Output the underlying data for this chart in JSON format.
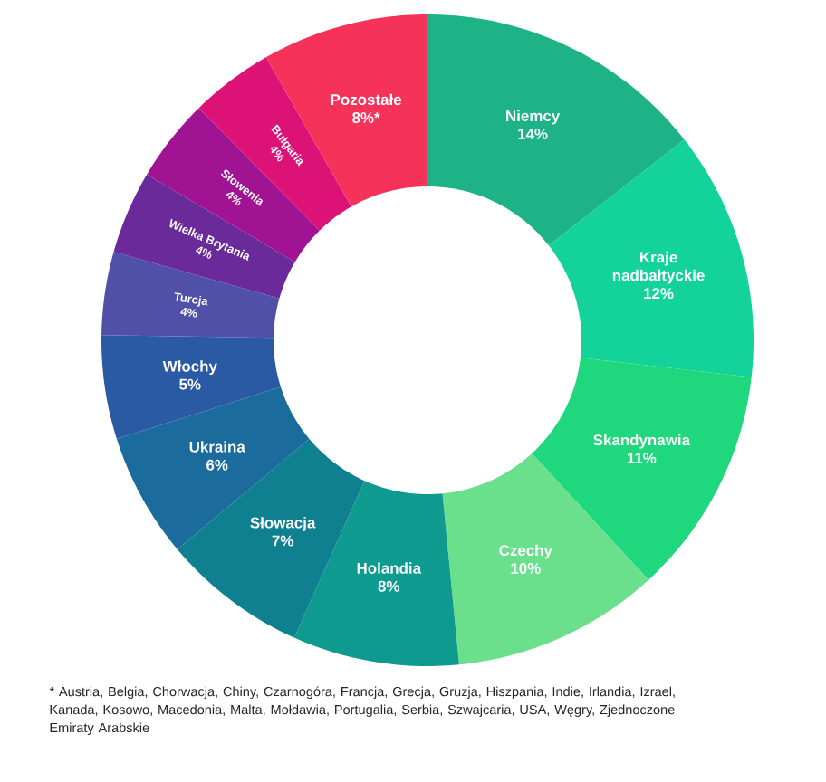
{
  "chart_data": {
    "type": "donut",
    "categories": [
      "Niemcy",
      "Kraje nadbałtyckie",
      "Skandynawia",
      "Czechy",
      "Holandia",
      "Słowacja",
      "Ukraina",
      "Włochy",
      "Turcja",
      "Wielka Brytania",
      "Słowenia",
      "Bułgaria",
      "Pozostałe"
    ],
    "values": [
      14,
      12,
      11,
      10,
      8,
      7,
      6,
      5,
      4,
      4,
      4,
      4,
      8
    ],
    "value_labels": [
      "14%",
      "12%",
      "11%",
      "10%",
      "8%",
      "7%",
      "6%",
      "5%",
      "4%",
      "4%",
      "4%",
      "4%",
      "8%*"
    ],
    "colors": [
      "#1db386",
      "#13d39a",
      "#1fd77c",
      "#6ae08c",
      "#0e9a8f",
      "#0f8090",
      "#1b6c9c",
      "#2b5aa5",
      "#5050a8",
      "#6a2a9a",
      "#a01494",
      "#dc1277",
      "#f4325a"
    ],
    "annotations": [
      "* Austria, Belgia, Chorwacja, Chiny, Czarnogóra, Francja, Grecja, Gruzja, Hiszpania, Indie, Irlandia, Izrael, Kanada, Kosowo, Macedonia, Malta, Mołdawia, Portugalia, Serbia,  Szwajcaria, USA, Węgry, Zjednoczone Emiraty Arabskie"
    ]
  }
}
